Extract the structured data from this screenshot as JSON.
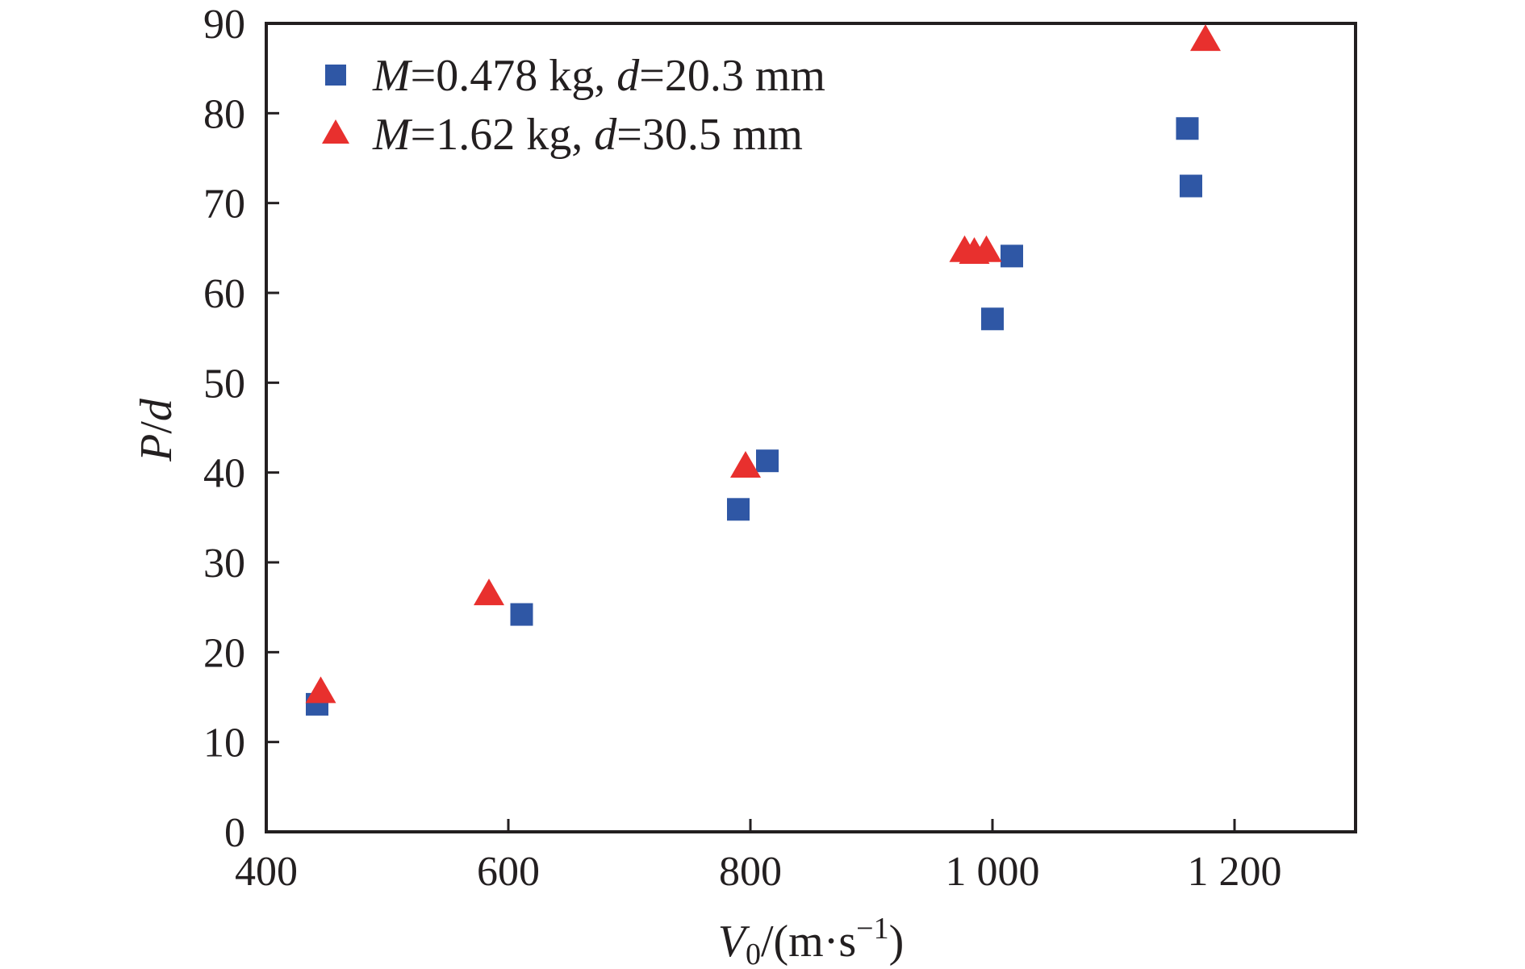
{
  "chart_data": {
    "type": "scatter",
    "title": "",
    "xlabel": {
      "symbol": "V",
      "subscript": "0",
      "unit_open": "/(m·s",
      "superscript": "−1",
      "unit_close": ")"
    },
    "ylabel": {
      "var1": "P",
      "sep": "/",
      "var2": "d"
    },
    "xlim": [
      400,
      1300
    ],
    "ylim": [
      0,
      90
    ],
    "xticks": [
      400,
      600,
      800,
      1000,
      1200
    ],
    "xtick_labels": [
      "400",
      "600",
      "800",
      "1 000",
      "1 200"
    ],
    "yticks": [
      0,
      10,
      20,
      30,
      40,
      50,
      60,
      70,
      80,
      90
    ],
    "ytick_labels": [
      "0",
      "10",
      "20",
      "30",
      "40",
      "50",
      "60",
      "70",
      "80",
      "90"
    ],
    "grid": false,
    "legend_position": "top-left",
    "series": [
      {
        "marker": "square",
        "color": "#2f57a5",
        "legend": {
          "v1": "M",
          "t1": "=0.478 kg, ",
          "v2": "d",
          "t2": "=20.3 mm"
        },
        "points": [
          {
            "x": 442,
            "y": 14.2
          },
          {
            "x": 611,
            "y": 24.2
          },
          {
            "x": 790,
            "y": 35.9
          },
          {
            "x": 814,
            "y": 41.3
          },
          {
            "x": 1000,
            "y": 57.1
          },
          {
            "x": 1016,
            "y": 64.1
          },
          {
            "x": 1161,
            "y": 78.3
          },
          {
            "x": 1164,
            "y": 71.9
          }
        ]
      },
      {
        "marker": "triangle",
        "color": "#e8302e",
        "legend": {
          "v1": "M",
          "t1": "=1.62 kg, ",
          "v2": "d",
          "t2": "=30.5 mm"
        },
        "points": [
          {
            "x": 445,
            "y": 15.5
          },
          {
            "x": 584,
            "y": 26.4
          },
          {
            "x": 796,
            "y": 40.6
          },
          {
            "x": 977,
            "y": 64.6
          },
          {
            "x": 985,
            "y": 64.4
          },
          {
            "x": 995,
            "y": 64.6
          },
          {
            "x": 1176,
            "y": 88.1
          }
        ]
      }
    ]
  }
}
